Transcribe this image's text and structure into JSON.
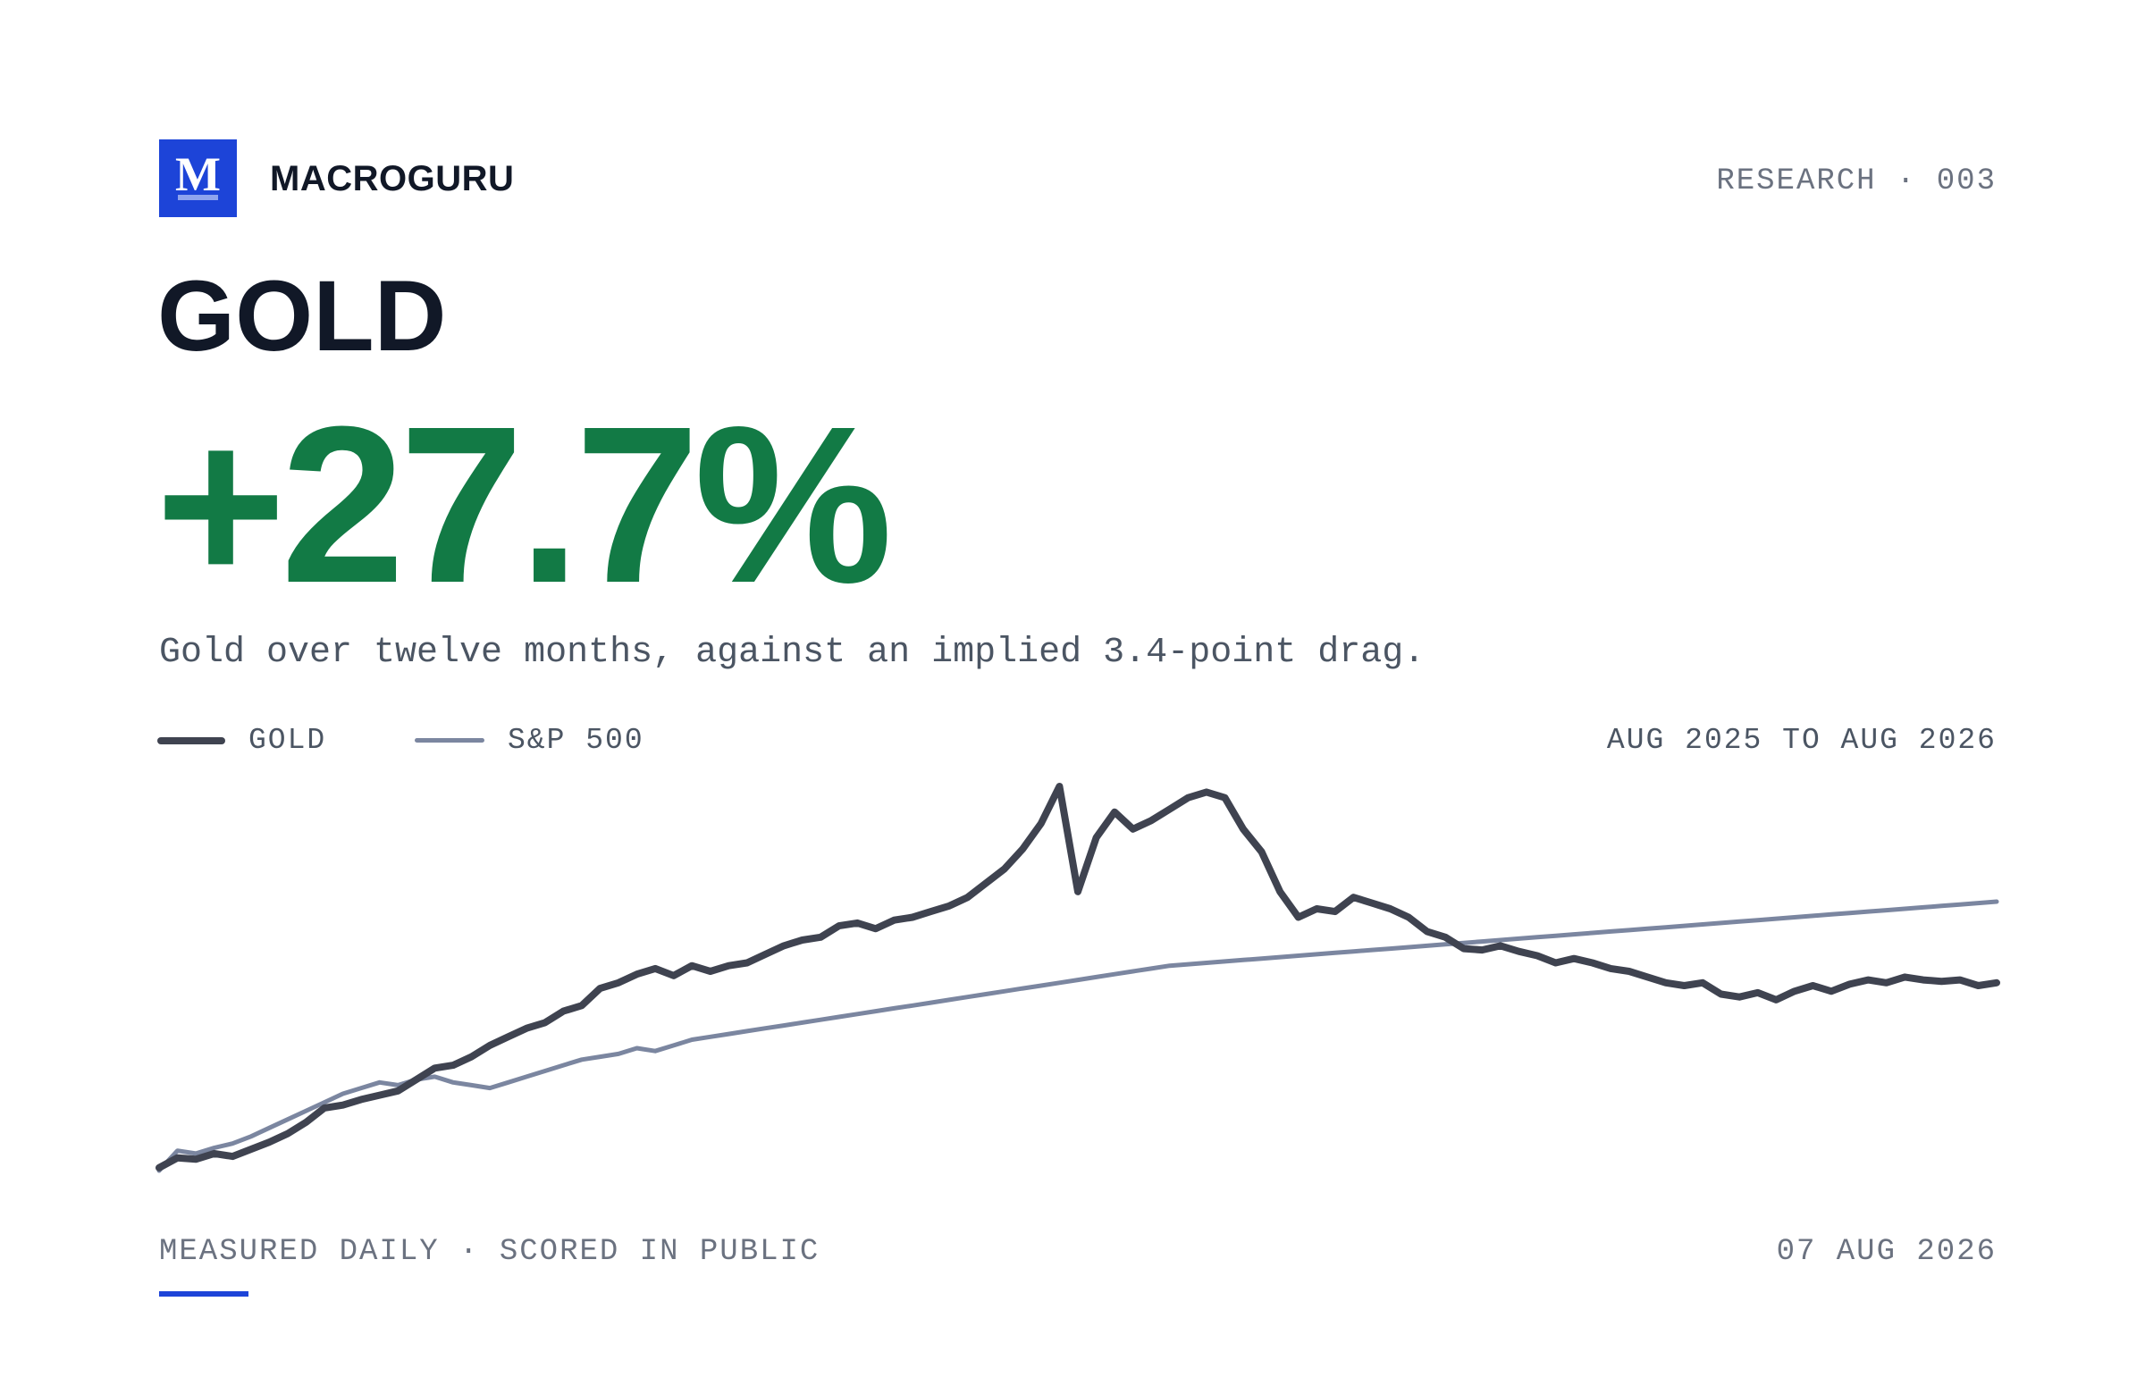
{
  "brand": {
    "logo_letter": "M",
    "name": "MACROGURU"
  },
  "report_id": "RESEARCH · 003",
  "asset": "GOLD",
  "headline_value": "+27.7%",
  "subtitle": "Gold over twelve months, against an implied 3.4-point drag.",
  "legend": [
    {
      "label": "GOLD",
      "color": "#3f4350"
    },
    {
      "label": "S&P 500",
      "color": "#7b86a0"
    }
  ],
  "date_range": "AUG 2025 TO AUG 2026",
  "footer": {
    "left": "MEASURED DAILY · SCORED IN PUBLIC",
    "right": "07 AUG 2026"
  },
  "colors": {
    "accent": "#1d44d8",
    "positive": "#127a45",
    "ink": "#111827"
  },
  "chart_data": {
    "type": "line",
    "x_range": [
      "2025-08",
      "2026-08"
    ],
    "xlabel": "",
    "ylabel": "",
    "grid": false,
    "axes_visible": false,
    "legend_placement": "top-left",
    "y_units": "indexed relative performance (unlabeled)",
    "series": [
      {
        "name": "GOLD",
        "color": "#3f4350",
        "points": [
          [
            0,
            1.0
          ],
          [
            2,
            4.5
          ],
          [
            4,
            4.0
          ],
          [
            6,
            6.0
          ],
          [
            8,
            5.0
          ],
          [
            10,
            7.5
          ],
          [
            12,
            10.0
          ],
          [
            14,
            13.0
          ],
          [
            16,
            17.0
          ],
          [
            18,
            22.0
          ],
          [
            20,
            23.0
          ],
          [
            22,
            25.0
          ],
          [
            24,
            26.5
          ],
          [
            26,
            28.0
          ],
          [
            28,
            32.0
          ],
          [
            30,
            36.0
          ],
          [
            32,
            37.0
          ],
          [
            34,
            40.0
          ],
          [
            36,
            44.0
          ],
          [
            38,
            47.0
          ],
          [
            40,
            50.0
          ],
          [
            42,
            52.0
          ],
          [
            44,
            56.0
          ],
          [
            46,
            58.0
          ],
          [
            48,
            64.0
          ],
          [
            50,
            66.0
          ],
          [
            52,
            69.0
          ],
          [
            54,
            71.0
          ],
          [
            56,
            68.5
          ],
          [
            58,
            72.0
          ],
          [
            60,
            70.0
          ],
          [
            62,
            72.0
          ],
          [
            64,
            73.0
          ],
          [
            66,
            76.0
          ],
          [
            68,
            79.0
          ],
          [
            70,
            81.0
          ],
          [
            72,
            82.0
          ],
          [
            74,
            86.0
          ],
          [
            76,
            87.0
          ],
          [
            78,
            85.0
          ],
          [
            80,
            88.0
          ],
          [
            82,
            89.0
          ],
          [
            84,
            91.0
          ],
          [
            86,
            93.0
          ],
          [
            88,
            96.0
          ],
          [
            90,
            101.0
          ],
          [
            92,
            106.0
          ],
          [
            94,
            113.0
          ],
          [
            96,
            122.0
          ],
          [
            98,
            135.0
          ],
          [
            100,
            98.0
          ],
          [
            102,
            117.0
          ],
          [
            104,
            126.0
          ],
          [
            106,
            120.0
          ],
          [
            108,
            123.0
          ],
          [
            110,
            127.0
          ],
          [
            112,
            131.0
          ],
          [
            114,
            133.0
          ],
          [
            116,
            131.0
          ],
          [
            118,
            120.0
          ],
          [
            120,
            112.0
          ],
          [
            122,
            98.0
          ],
          [
            124,
            89.0
          ],
          [
            126,
            92.0
          ],
          [
            128,
            91.0
          ],
          [
            130,
            96.0
          ],
          [
            132,
            94.0
          ],
          [
            134,
            92.0
          ],
          [
            136,
            89.0
          ],
          [
            138,
            84.0
          ],
          [
            140,
            82.0
          ],
          [
            142,
            78.0
          ],
          [
            144,
            77.5
          ],
          [
            146,
            79.0
          ],
          [
            148,
            77.0
          ],
          [
            150,
            75.5
          ],
          [
            152,
            73.0
          ],
          [
            154,
            74.5
          ],
          [
            156,
            73.0
          ],
          [
            158,
            71.0
          ],
          [
            160,
            70.0
          ],
          [
            162,
            68.0
          ],
          [
            164,
            66.0
          ],
          [
            166,
            65.0
          ],
          [
            168,
            66.0
          ],
          [
            170,
            62.0
          ],
          [
            172,
            61.0
          ],
          [
            174,
            62.5
          ],
          [
            176,
            60.0
          ],
          [
            178,
            63.0
          ],
          [
            180,
            65.0
          ],
          [
            182,
            63.0
          ],
          [
            184,
            65.5
          ],
          [
            186,
            67.0
          ],
          [
            188,
            66.0
          ],
          [
            190,
            68.0
          ],
          [
            192,
            67.0
          ],
          [
            194,
            66.5
          ],
          [
            196,
            67.0
          ],
          [
            198,
            65.0
          ],
          [
            200,
            66.0
          ]
        ]
      },
      {
        "name": "S&P 500",
        "color": "#7b86a0",
        "points": [
          [
            0,
            0.0
          ],
          [
            2,
            7.0
          ],
          [
            4,
            6.0
          ],
          [
            6,
            8.0
          ],
          [
            8,
            9.5
          ],
          [
            10,
            12.0
          ],
          [
            12,
            15.0
          ],
          [
            14,
            18.0
          ],
          [
            16,
            21.0
          ],
          [
            18,
            24.0
          ],
          [
            20,
            27.0
          ],
          [
            22,
            29.0
          ],
          [
            24,
            31.0
          ],
          [
            26,
            30.0
          ],
          [
            28,
            32.0
          ],
          [
            30,
            33.0
          ],
          [
            32,
            31.0
          ],
          [
            34,
            30.0
          ],
          [
            36,
            29.0
          ],
          [
            38,
            31.0
          ],
          [
            40,
            33.0
          ],
          [
            42,
            35.0
          ],
          [
            44,
            37.0
          ],
          [
            46,
            39.0
          ],
          [
            48,
            40.0
          ],
          [
            50,
            41.0
          ],
          [
            52,
            43.0
          ],
          [
            54,
            42.0
          ],
          [
            56,
            44.0
          ],
          [
            58,
            46.0
          ],
          [
            60,
            47.0
          ],
          [
            62,
            48.0
          ],
          [
            64,
            49.0
          ],
          [
            66,
            50.0
          ],
          [
            68,
            51.0
          ],
          [
            70,
            52.0
          ],
          [
            72,
            53.0
          ],
          [
            74,
            54.0
          ],
          [
            76,
            55.0
          ],
          [
            78,
            56.0
          ],
          [
            80,
            57.0
          ],
          [
            82,
            58.0
          ],
          [
            84,
            59.0
          ],
          [
            86,
            60.0
          ],
          [
            88,
            61.0
          ],
          [
            90,
            62.0
          ],
          [
            92,
            63.0
          ],
          [
            94,
            64.0
          ],
          [
            96,
            65.0
          ],
          [
            98,
            66.0
          ],
          [
            100,
            67.0
          ],
          [
            102,
            68.0
          ],
          [
            104,
            69.0
          ],
          [
            106,
            70.0
          ],
          [
            108,
            71.0
          ],
          [
            110,
            72.0
          ],
          [
            112,
            72.5
          ],
          [
            114,
            73.0
          ],
          [
            116,
            73.5
          ],
          [
            118,
            74.0
          ],
          [
            120,
            74.5
          ],
          [
            122,
            75.0
          ],
          [
            124,
            75.5
          ],
          [
            126,
            76.0
          ],
          [
            128,
            76.5
          ],
          [
            130,
            77.0
          ],
          [
            132,
            77.5
          ],
          [
            134,
            78.0
          ],
          [
            136,
            78.5
          ],
          [
            138,
            79.0
          ],
          [
            140,
            79.5
          ],
          [
            142,
            80.0
          ],
          [
            144,
            80.5
          ],
          [
            146,
            81.0
          ],
          [
            148,
            81.5
          ],
          [
            150,
            82.0
          ],
          [
            152,
            82.5
          ],
          [
            154,
            83.0
          ],
          [
            156,
            83.5
          ],
          [
            158,
            84.0
          ],
          [
            160,
            84.5
          ],
          [
            162,
            85.0
          ],
          [
            164,
            85.5
          ],
          [
            166,
            86.0
          ],
          [
            168,
            86.5
          ],
          [
            170,
            87.0
          ],
          [
            172,
            87.5
          ],
          [
            174,
            88.0
          ],
          [
            176,
            88.5
          ],
          [
            178,
            89.0
          ],
          [
            180,
            89.5
          ],
          [
            182,
            90.0
          ],
          [
            184,
            90.5
          ],
          [
            186,
            91.0
          ],
          [
            188,
            91.5
          ],
          [
            190,
            92.0
          ],
          [
            192,
            92.5
          ],
          [
            194,
            93.0
          ],
          [
            196,
            93.5
          ],
          [
            198,
            94.0
          ],
          [
            200,
            94.5
          ]
        ]
      }
    ]
  }
}
